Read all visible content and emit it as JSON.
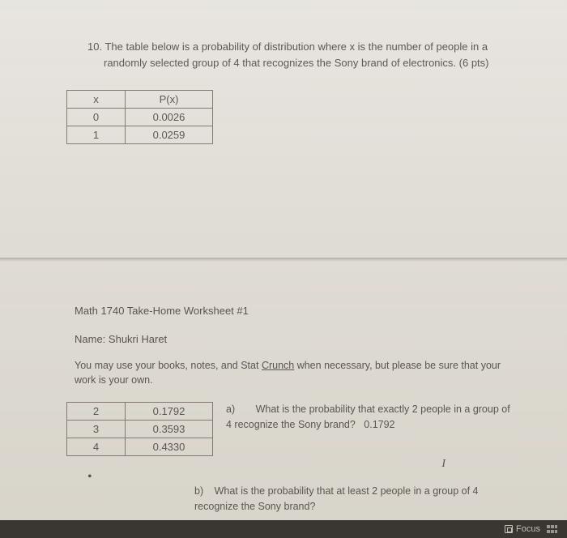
{
  "question": {
    "number": "10.",
    "text": "The table below is a probability of distribution where x is the number of people in a randomly selected group of 4 that recognizes the Sony brand of electronics.   (6 pts)"
  },
  "table1": {
    "header_x": "x",
    "header_px": "P(x)",
    "rows": [
      {
        "x": "0",
        "px": "0.0026"
      },
      {
        "x": "1",
        "px": "0.0259"
      }
    ]
  },
  "worksheet": {
    "header": "Math 1740 Take-Home Worksheet #1",
    "name_label": "Name:",
    "name_value": "Shukri Haret",
    "instructions_pre": "You may use your books, notes, and Stat ",
    "instructions_underlined": "Crunch",
    "instructions_post": " when necessary, but please be sure that your work is your own."
  },
  "table2": {
    "rows": [
      {
        "x": "2",
        "px": "0.1792"
      },
      {
        "x": "3",
        "px": "0.3593"
      },
      {
        "x": "4",
        "px": "0.4330"
      }
    ]
  },
  "part_a": {
    "label": "a)",
    "question": "What is the probability that exactly 2 people in a group of 4 recognize the Sony brand?",
    "answer": "0.1792"
  },
  "part_b": {
    "label": "b)",
    "question": "What is the probability that at least 2 people in a group of 4 recognize the Sony brand?"
  },
  "footer": {
    "focus_label": "Focus"
  },
  "marks": {
    "cursor": "I",
    "dot": "•"
  }
}
